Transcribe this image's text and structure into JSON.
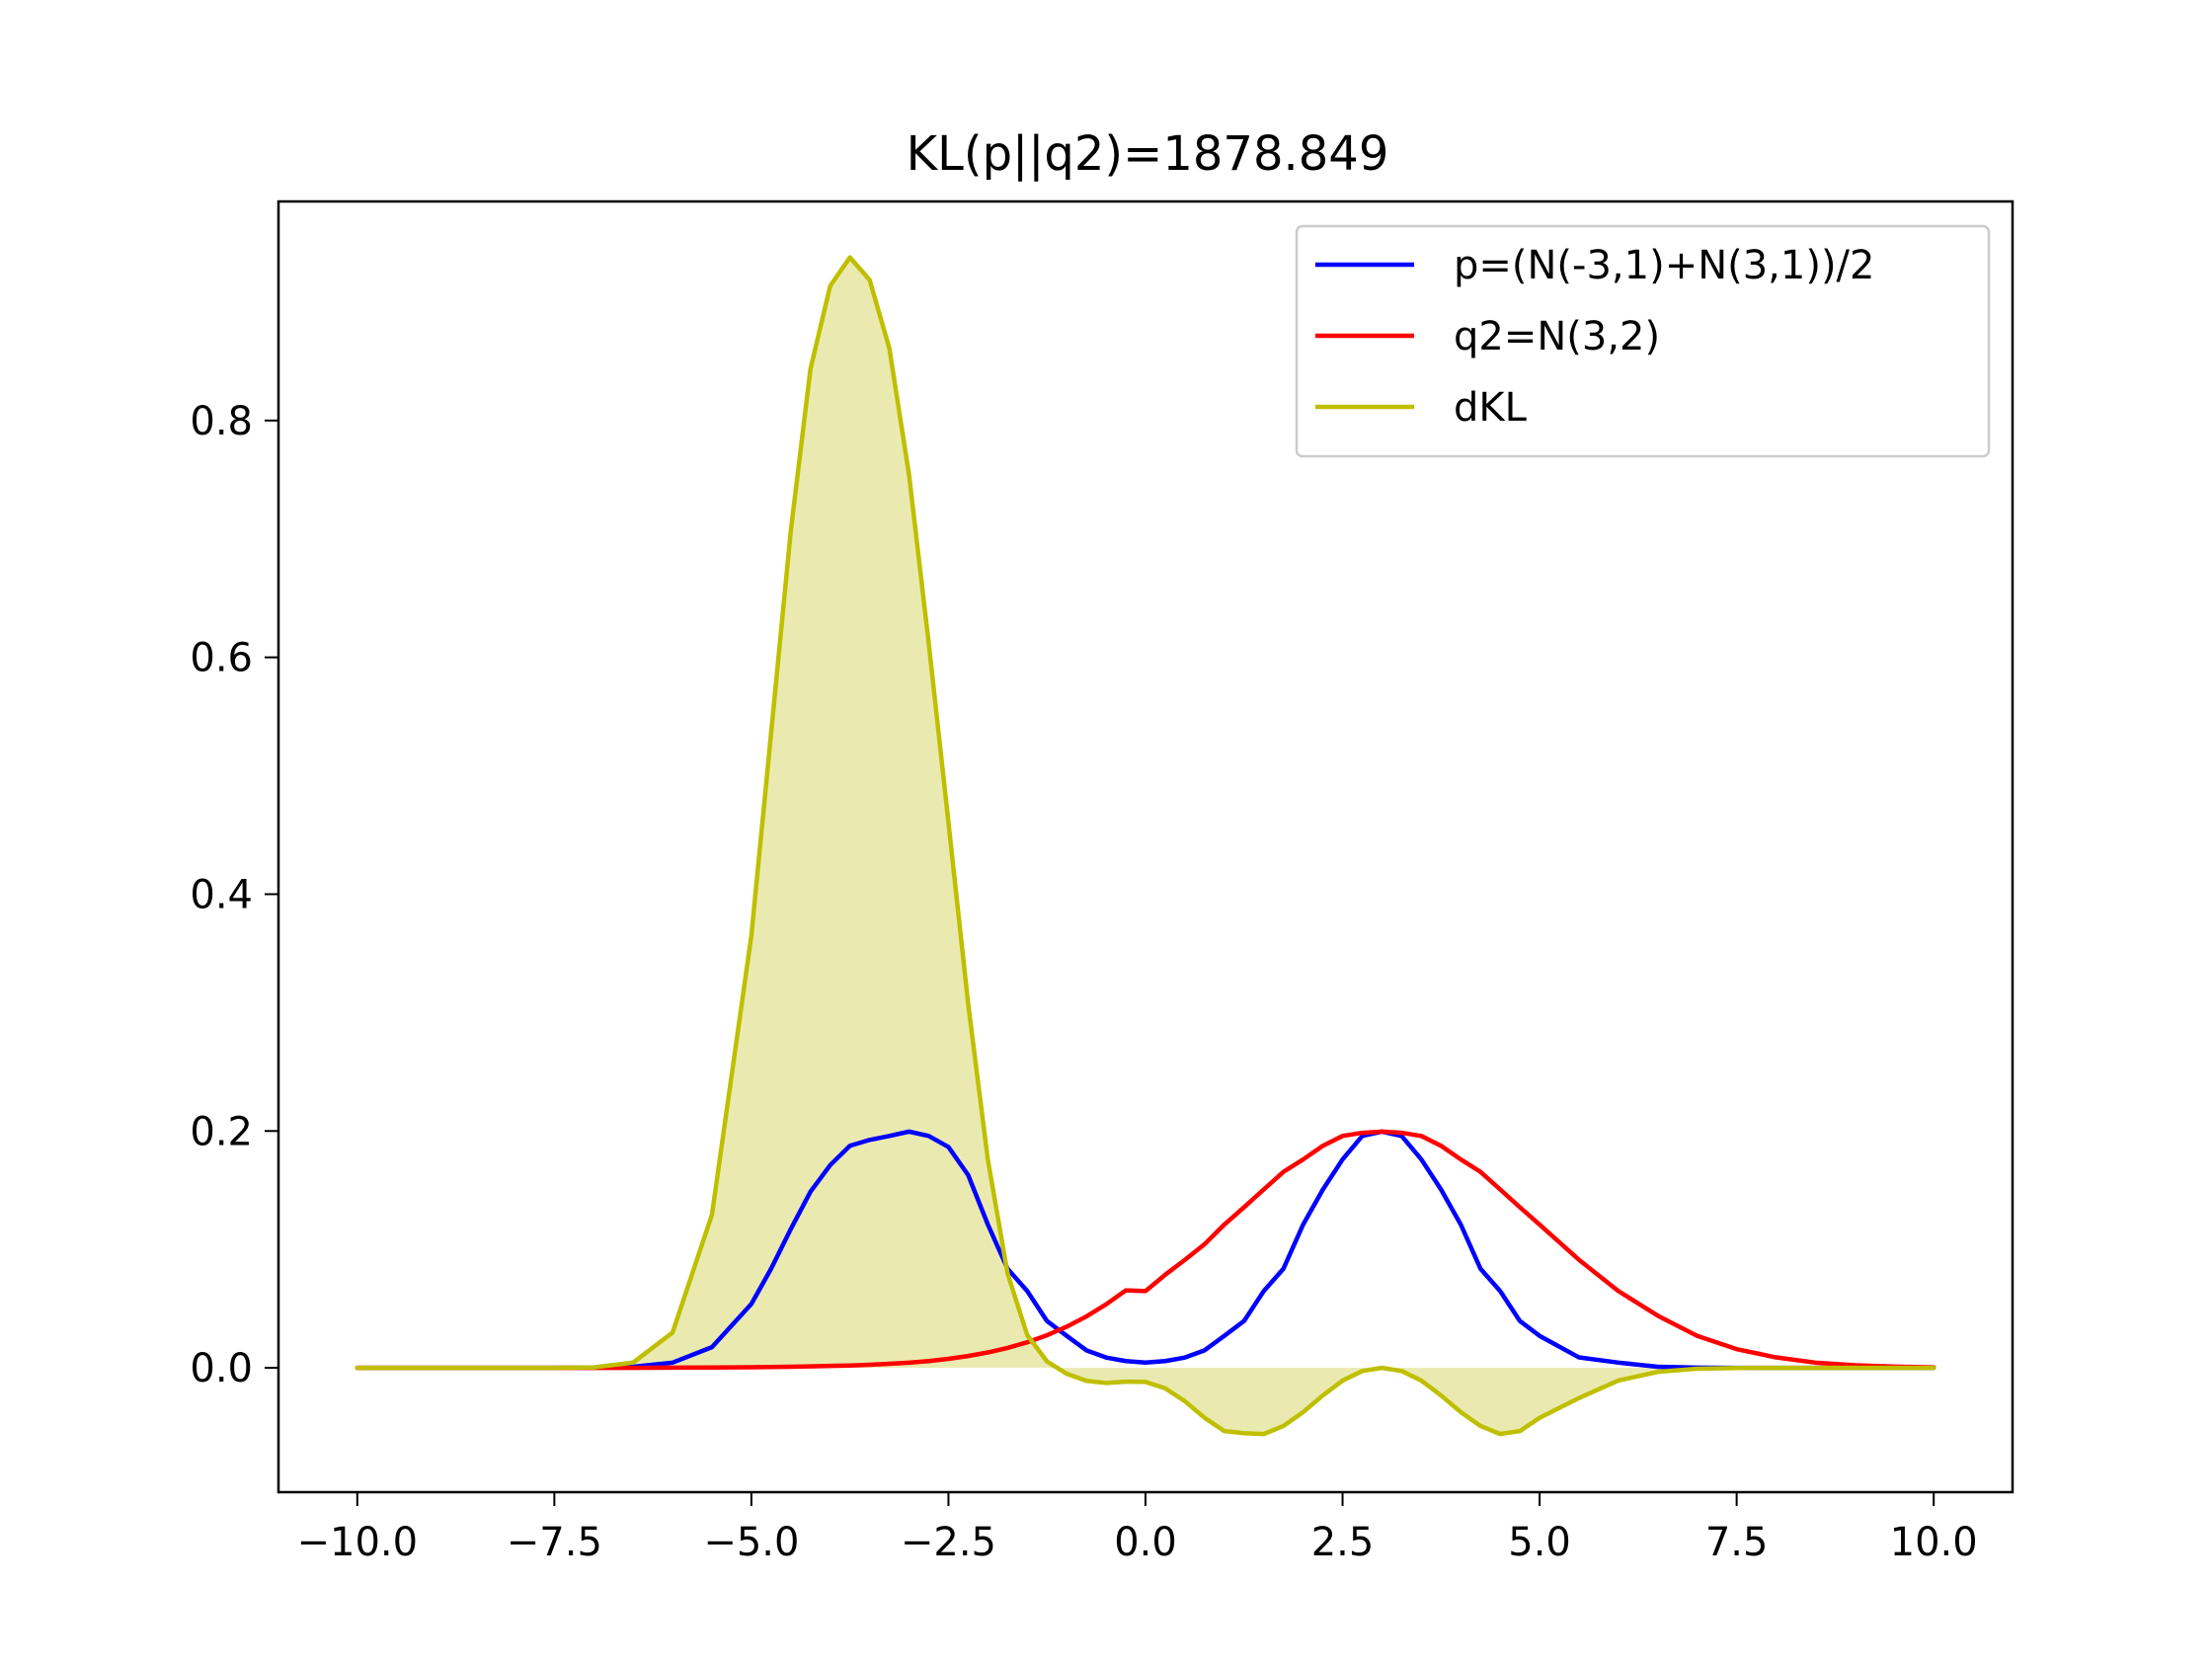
{
  "chart_data": {
    "type": "line",
    "title": "KL(p||q2)=1878.849",
    "xlabel": "",
    "ylabel": "",
    "xlim": [
      -11.0,
      11.0
    ],
    "ylim": [
      -0.105,
      0.985
    ],
    "grid": false,
    "legend_position": "top-right",
    "x_ticks": [
      -10.0,
      -7.5,
      -5.0,
      -2.5,
      0.0,
      2.5,
      5.0,
      7.5,
      10.0
    ],
    "x_tick_labels": [
      "−10.0",
      "−7.5",
      "−5.0",
      "−2.5",
      "0.0",
      "2.5",
      "5.0",
      "7.5",
      "10.0"
    ],
    "y_ticks": [
      0.0,
      0.2,
      0.4,
      0.6,
      0.8
    ],
    "y_tick_labels": [
      "0.0",
      "0.2",
      "0.4",
      "0.6",
      "0.8"
    ],
    "x": [
      -10.0,
      -9.5,
      -9.0,
      -8.5,
      -8.0,
      -7.5,
      -7.0,
      -6.5,
      -6.0,
      -5.5,
      -5.0,
      -4.75,
      -4.5,
      -4.25,
      -4.0,
      -3.75,
      -3.5,
      -3.25,
      -3.0,
      -2.75,
      -2.5,
      -2.25,
      -2.0,
      -1.75,
      -1.5,
      -1.25,
      -1.0,
      -0.75,
      -0.5,
      -0.25,
      0.0,
      0.25,
      0.5,
      0.75,
      1.0,
      1.25,
      1.5,
      1.75,
      2.0,
      2.25,
      2.5,
      2.75,
      3.0,
      3.25,
      3.5,
      3.75,
      4.0,
      4.25,
      4.5,
      4.75,
      5.0,
      5.5,
      6.0,
      6.5,
      7.0,
      7.5,
      8.0,
      8.5,
      9.0,
      9.5,
      10.0
    ],
    "series": [
      {
        "name": "p=(N(-3,1)+N(3,1))/2",
        "color": "#0000ff",
        "fill": false,
        "values": [
          0.0,
          0.0,
          0.0,
          0.0,
          0.0,
          0.0,
          0.0002,
          0.0009,
          0.0044,
          0.0175,
          0.054,
          0.0837,
          0.1172,
          0.1488,
          0.1712,
          0.1875,
          0.1925,
          0.1958,
          0.1995,
          0.1958,
          0.1865,
          0.1628,
          0.121,
          0.0837,
          0.0648,
          0.0395,
          0.027,
          0.0148,
          0.0087,
          0.0057,
          0.0045,
          0.0057,
          0.0087,
          0.0148,
          0.027,
          0.0395,
          0.0648,
          0.0837,
          0.121,
          0.1505,
          0.176,
          0.1958,
          0.1995,
          0.1958,
          0.176,
          0.1505,
          0.121,
          0.0837,
          0.0648,
          0.0395,
          0.027,
          0.0088,
          0.0044,
          0.0009,
          0.0002,
          0.0,
          0.0,
          0.0,
          0.0,
          0.0,
          0.0
        ]
      },
      {
        "name": "q2=N(3,2)",
        "color": "#ff0000",
        "fill": false,
        "values": [
          0.0,
          0.0,
          0.0,
          0.0,
          0.0,
          0.0,
          0.0,
          0.0,
          0.0002,
          0.0003,
          0.0005,
          0.0007,
          0.0009,
          0.0012,
          0.0016,
          0.002,
          0.0026,
          0.0034,
          0.0044,
          0.0057,
          0.0076,
          0.01,
          0.013,
          0.0168,
          0.0216,
          0.0275,
          0.0347,
          0.0434,
          0.0536,
          0.0654,
          0.0648,
          0.0786,
          0.0912,
          0.1044,
          0.121,
          0.1356,
          0.1506,
          0.1655,
          0.176,
          0.1875,
          0.1958,
          0.1985,
          0.1995,
          0.1985,
          0.1958,
          0.1875,
          0.176,
          0.1655,
          0.1506,
          0.1356,
          0.121,
          0.0912,
          0.0648,
          0.044,
          0.027,
          0.0158,
          0.0088,
          0.0044,
          0.0022,
          0.001,
          0.0004
        ]
      },
      {
        "name": "dKL",
        "color": "#bfbf00",
        "fill": true,
        "fill_color": "#eaeab0",
        "values": [
          0.0,
          0.0,
          0.0,
          0.0,
          0.0,
          0.0,
          0.0004,
          0.0045,
          0.0298,
          0.1294,
          0.3653,
          0.5359,
          0.7069,
          0.8438,
          0.9137,
          0.9378,
          0.9187,
          0.8611,
          0.7542,
          0.6119,
          0.4606,
          0.3075,
          0.1758,
          0.0797,
          0.0276,
          0.0054,
          -0.005,
          -0.011,
          -0.0128,
          -0.0117,
          -0.0119,
          -0.0173,
          -0.0282,
          -0.0422,
          -0.0534,
          -0.0552,
          -0.0559,
          -0.0491,
          -0.0374,
          -0.0233,
          -0.0108,
          -0.0027,
          0.0,
          -0.0027,
          -0.0108,
          -0.0233,
          -0.0374,
          -0.0491,
          -0.0559,
          -0.0534,
          -0.0422,
          -0.0255,
          -0.0107,
          -0.0034,
          -0.0007,
          -0.0001,
          0.0,
          0.0,
          0.0,
          0.0,
          0.0
        ]
      }
    ]
  }
}
